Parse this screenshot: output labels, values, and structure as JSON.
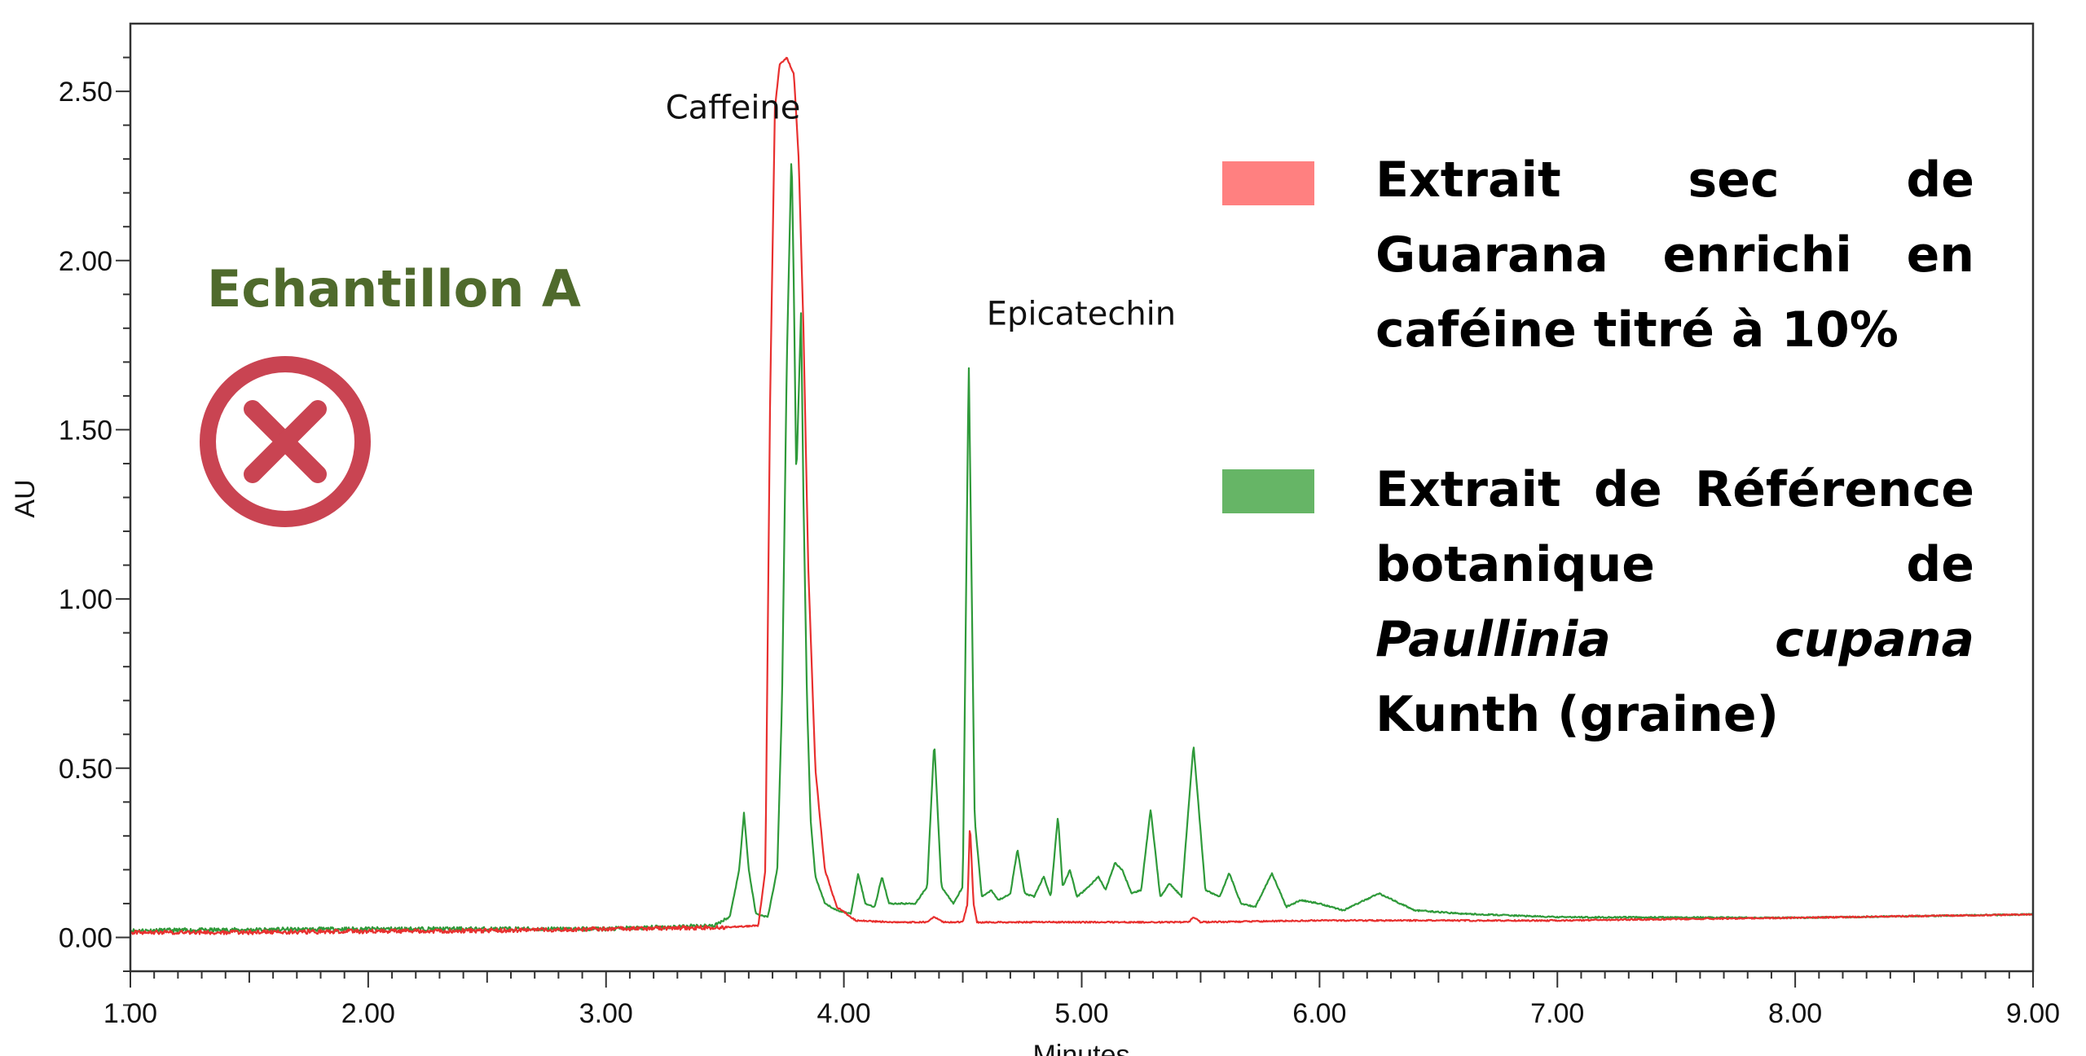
{
  "chart_data": {
    "type": "line",
    "title": "",
    "xlabel": "Minutes",
    "ylabel": "AU",
    "xlim": [
      1.0,
      9.0
    ],
    "ylim": [
      -0.1,
      2.7
    ],
    "x_ticks": [
      "1.00",
      "2.00",
      "3.00",
      "4.00",
      "5.00",
      "6.00",
      "7.00",
      "8.00",
      "9.00"
    ],
    "y_ticks": [
      "0.00",
      "0.50",
      "1.00",
      "1.50",
      "2.00",
      "2.50"
    ],
    "annotations": [
      {
        "text": "Caffeine",
        "x": 3.25,
        "y": 2.42
      },
      {
        "text": "Epicatechin",
        "x": 4.6,
        "y": 1.81
      }
    ],
    "series": [
      {
        "name": "Extrait sec de Guarana enrichi en caféine titré à 10%",
        "color": "#e8302f",
        "x": [
          1.0,
          1.5,
          2.0,
          2.5,
          3.0,
          3.5,
          3.64,
          3.67,
          3.69,
          3.71,
          3.73,
          3.76,
          3.79,
          3.81,
          3.83,
          3.85,
          3.88,
          3.92,
          3.97,
          4.05,
          4.2,
          4.35,
          4.38,
          4.42,
          4.5,
          4.52,
          4.53,
          4.545,
          4.56,
          4.6,
          5.0,
          5.45,
          5.47,
          5.5,
          6.0,
          7.0,
          8.0,
          9.0
        ],
        "y": [
          0.015,
          0.015,
          0.018,
          0.02,
          0.025,
          0.03,
          0.035,
          0.2,
          1.6,
          2.45,
          2.58,
          2.6,
          2.55,
          2.3,
          1.8,
          1.1,
          0.5,
          0.2,
          0.09,
          0.05,
          0.045,
          0.045,
          0.06,
          0.045,
          0.045,
          0.1,
          0.34,
          0.1,
          0.045,
          0.045,
          0.045,
          0.045,
          0.06,
          0.045,
          0.05,
          0.05,
          0.058,
          0.068
        ]
      },
      {
        "name": "Extrait de Référence botanique de Paullinia cupana Kunth (graine)",
        "color": "#2f9a3a",
        "x": [
          1.0,
          2.0,
          3.0,
          3.45,
          3.52,
          3.56,
          3.58,
          3.6,
          3.63,
          3.68,
          3.72,
          3.74,
          3.76,
          3.78,
          3.79,
          3.8,
          3.81,
          3.82,
          3.83,
          3.845,
          3.86,
          3.88,
          3.92,
          3.97,
          4.03,
          4.06,
          4.09,
          4.13,
          4.16,
          4.19,
          4.3,
          4.35,
          4.38,
          4.41,
          4.46,
          4.5,
          4.525,
          4.55,
          4.58,
          4.62,
          4.65,
          4.7,
          4.73,
          4.76,
          4.8,
          4.84,
          4.87,
          4.9,
          4.92,
          4.95,
          4.98,
          5.03,
          5.07,
          5.1,
          5.14,
          5.17,
          5.21,
          5.25,
          5.29,
          5.33,
          5.37,
          5.42,
          5.47,
          5.52,
          5.58,
          5.62,
          5.67,
          5.73,
          5.8,
          5.86,
          5.92,
          6.0,
          6.1,
          6.25,
          6.4,
          6.6,
          7.0,
          8.0,
          9.0
        ],
        "y": [
          0.02,
          0.025,
          0.025,
          0.035,
          0.06,
          0.2,
          0.37,
          0.2,
          0.07,
          0.06,
          0.2,
          0.7,
          1.7,
          2.33,
          1.9,
          1.35,
          1.6,
          1.85,
          1.3,
          0.7,
          0.35,
          0.18,
          0.1,
          0.08,
          0.07,
          0.19,
          0.1,
          0.09,
          0.18,
          0.1,
          0.1,
          0.15,
          0.58,
          0.15,
          0.1,
          0.15,
          1.71,
          0.35,
          0.12,
          0.14,
          0.11,
          0.13,
          0.26,
          0.13,
          0.12,
          0.18,
          0.12,
          0.36,
          0.15,
          0.2,
          0.12,
          0.15,
          0.18,
          0.14,
          0.22,
          0.2,
          0.13,
          0.14,
          0.38,
          0.12,
          0.16,
          0.12,
          0.57,
          0.14,
          0.12,
          0.19,
          0.1,
          0.09,
          0.19,
          0.09,
          0.11,
          0.1,
          0.08,
          0.13,
          0.08,
          0.07,
          0.06,
          0.058,
          0.068
        ]
      }
    ]
  },
  "sample": {
    "title": "Echantillon A",
    "status": "rejected"
  },
  "legend": {
    "item1": {
      "label": "Extrait sec de Guarana enrichi en caféine titré à 10%",
      "color": "#ff8080"
    },
    "item2": {
      "label_prefix": "Extrait de Référence botanique de",
      "label_italic": "Paullinia cupana",
      "label_suffix": "Kunth (graine)",
      "color": "#66b566"
    }
  },
  "icons": {
    "status": "circled-x-icon",
    "status_color": "#c94452"
  }
}
